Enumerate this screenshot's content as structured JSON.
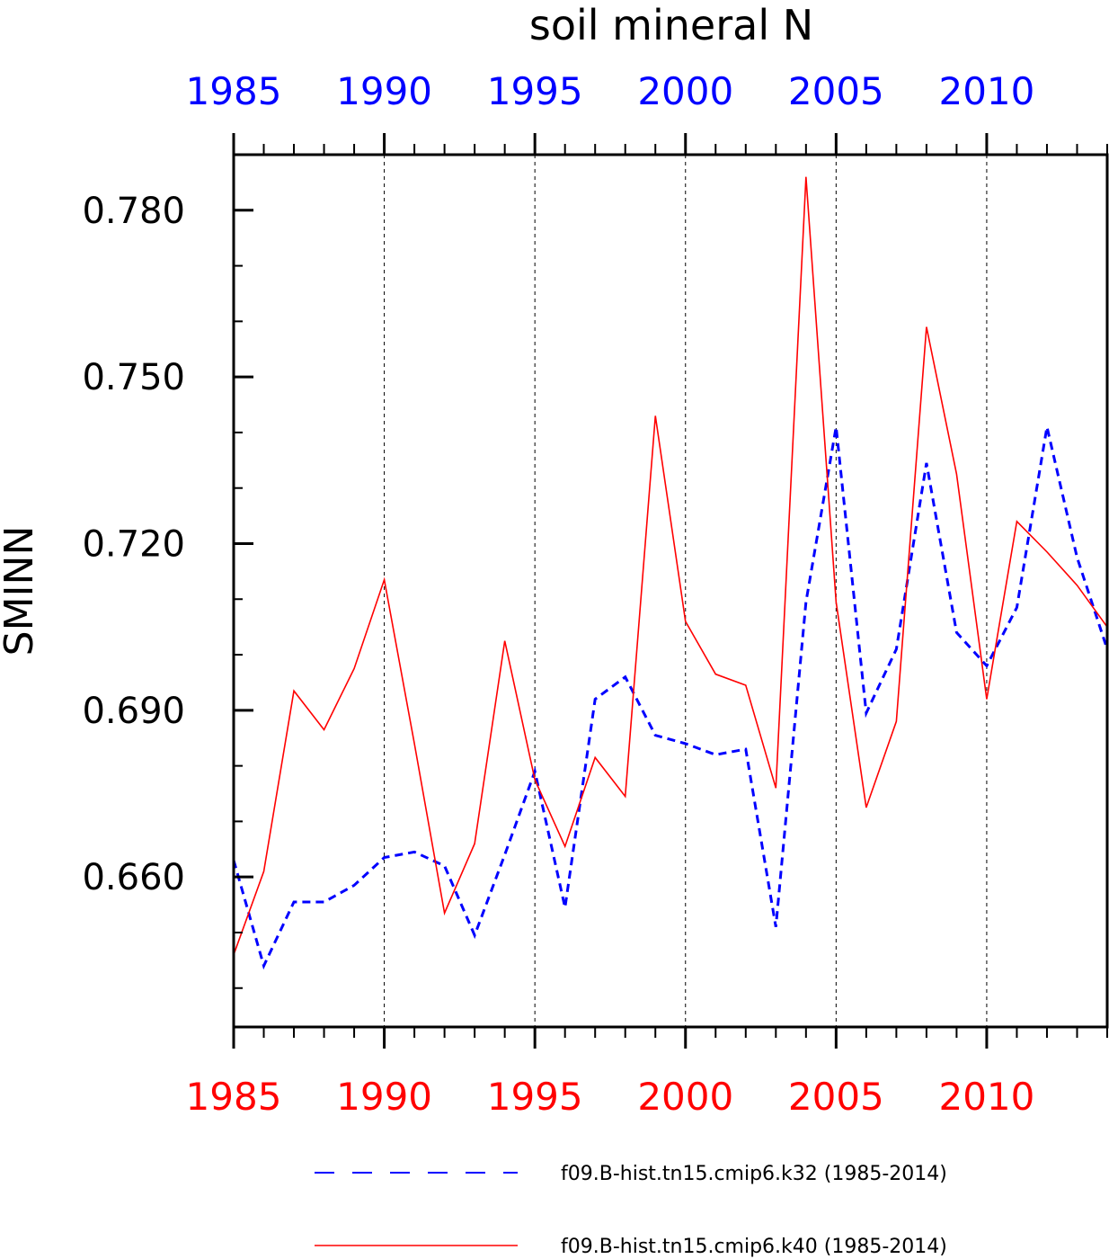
{
  "chart_data": {
    "type": "line",
    "title": "soil mineral N",
    "ylabel": "SMINN",
    "xlabel": "",
    "xlim": [
      1985,
      2014
    ],
    "ylim": [
      0.633,
      0.79
    ],
    "x_ticks": [
      1985,
      1990,
      1995,
      2000,
      2005,
      2010
    ],
    "x_tick_labels": [
      "1985",
      "1990",
      "1995",
      "2000",
      "2005",
      "2010"
    ],
    "y_ticks": [
      0.66,
      0.69,
      0.72,
      0.75,
      0.78
    ],
    "y_tick_labels": [
      "0.660",
      "0.690",
      "0.720",
      "0.750",
      "0.780"
    ],
    "x_minor_step": 1,
    "y_minor_step": 0.01,
    "grid": "vertical dashed at major x ticks",
    "legend_position": "bottom",
    "x": [
      1985,
      1986,
      1987,
      1988,
      1989,
      1990,
      1991,
      1992,
      1993,
      1994,
      1995,
      1996,
      1997,
      1998,
      1999,
      2000,
      2001,
      2002,
      2003,
      2004,
      2005,
      2006,
      2007,
      2008,
      2009,
      2010,
      2011,
      2012,
      2013,
      2014
    ],
    "series": [
      {
        "name": "f09.B-hist.tn15.cmip6.k32 (1985-2014)",
        "color": "#0000ff",
        "style": "dashed",
        "values": [
          0.663,
          0.644,
          0.6555,
          0.6555,
          0.6585,
          0.6635,
          0.6645,
          0.662,
          0.6495,
          0.664,
          0.679,
          0.6545,
          0.692,
          0.696,
          0.6855,
          0.684,
          0.682,
          0.683,
          0.651,
          0.7095,
          0.741,
          0.6895,
          0.701,
          0.7345,
          0.704,
          0.698,
          0.7085,
          0.741,
          0.7175,
          0.701
        ]
      },
      {
        "name": "f09.B-hist.tn15.cmip6.k40 (1985-2014)",
        "color": "#ff0000",
        "style": "solid",
        "values": [
          0.646,
          0.661,
          0.6935,
          0.6865,
          0.6975,
          0.7135,
          0.684,
          0.6535,
          0.666,
          0.7025,
          0.6775,
          0.6655,
          0.6815,
          0.6745,
          0.743,
          0.706,
          0.6965,
          0.6945,
          0.676,
          0.786,
          0.7095,
          0.6725,
          0.688,
          0.759,
          0.7325,
          0.692,
          0.724,
          0.7185,
          0.7125,
          0.705
        ]
      }
    ],
    "top_axis_color": "#0000ff",
    "bottom_axis_color": "#ff0000"
  }
}
